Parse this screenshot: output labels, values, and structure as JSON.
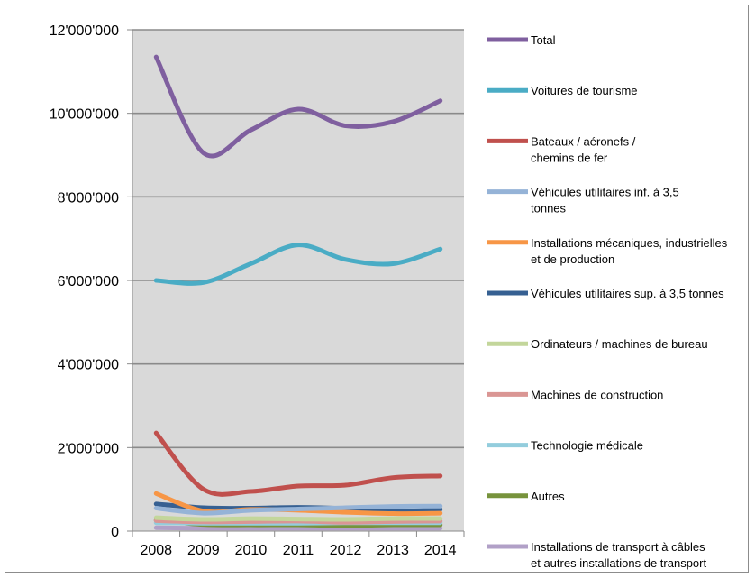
{
  "chart_data": {
    "type": "line",
    "title": "",
    "xlabel": "",
    "ylabel": "",
    "x": [
      "2008",
      "2009",
      "2010",
      "2011",
      "2012",
      "2013",
      "2014"
    ],
    "ylim": [
      0,
      12000000
    ],
    "yticks": [
      0,
      2000000,
      4000000,
      6000000,
      8000000,
      10000000,
      12000000
    ],
    "ytick_labels": [
      "0",
      "2'000'000",
      "4'000'000",
      "6'000'000",
      "8'000'000",
      "10'000'000",
      "12'000'000"
    ],
    "grid": true,
    "plot_background": "#d9d9d9",
    "legend_position": "right",
    "series": [
      {
        "name": "Total",
        "color": "#7f5f9f",
        "values": [
          11350000,
          9050000,
          9600000,
          10100000,
          9700000,
          9800000,
          10300000
        ]
      },
      {
        "name": "Voitures de tourisme",
        "color": "#4aacc5",
        "values": [
          6000000,
          5950000,
          6400000,
          6850000,
          6500000,
          6400000,
          6750000
        ]
      },
      {
        "name": "Bateaux / aéronefs / chemins de fer",
        "color": "#c0504d",
        "values": [
          2350000,
          1000000,
          950000,
          1080000,
          1100000,
          1280000,
          1320000
        ]
      },
      {
        "name": "Véhicules utilitaires inf. à 3,5 tonnes",
        "color": "#95b3d7",
        "values": [
          550000,
          430000,
          500000,
          530000,
          560000,
          590000,
          600000
        ]
      },
      {
        "name": "Installations mécaniques, industrielles et de production",
        "color": "#f79646",
        "values": [
          900000,
          480000,
          520000,
          500000,
          450000,
          420000,
          430000
        ]
      },
      {
        "name": "Véhicules utilitaires sup. à 3,5 tonnes",
        "color": "#366092",
        "values": [
          650000,
          560000,
          550000,
          570000,
          540000,
          470000,
          520000
        ]
      },
      {
        "name": "Ordinateurs / machines de bureau",
        "color": "#c3d69b",
        "values": [
          320000,
          280000,
          300000,
          290000,
          280000,
          300000,
          300000
        ]
      },
      {
        "name": "Machines de construction",
        "color": "#da9694",
        "values": [
          250000,
          220000,
          230000,
          240000,
          210000,
          230000,
          240000
        ]
      },
      {
        "name": "Technologie médicale",
        "color": "#93cddd",
        "values": [
          200000,
          190000,
          190000,
          190000,
          200000,
          200000,
          200000
        ]
      },
      {
        "name": "Autres",
        "color": "#77933c",
        "values": [
          260000,
          160000,
          150000,
          150000,
          130000,
          150000,
          150000
        ]
      },
      {
        "name": "Installations de transport à câbles et autres installations de transport",
        "color": "#b1a0c7",
        "values": [
          80000,
          70000,
          70000,
          70000,
          70000,
          70000,
          70000
        ]
      }
    ]
  },
  "legend_lines": [
    [
      "Total"
    ],
    [
      "Voitures de tourisme"
    ],
    [
      "Bateaux / aéronefs /",
      "chemins de fer"
    ],
    [
      "Véhicules utilitaires inf. à 3,5",
      "tonnes"
    ],
    [
      "Installations mécaniques, industrielles",
      "et de production"
    ],
    [
      "Véhicules utilitaires sup. à 3,5 tonnes"
    ],
    [
      "Ordinateurs / machines de bureau"
    ],
    [
      "Machines de construction"
    ],
    [
      "Technologie médicale"
    ],
    [
      "Autres"
    ],
    [
      "Installations de transport à câbles",
      "et autres installations de transport"
    ]
  ]
}
